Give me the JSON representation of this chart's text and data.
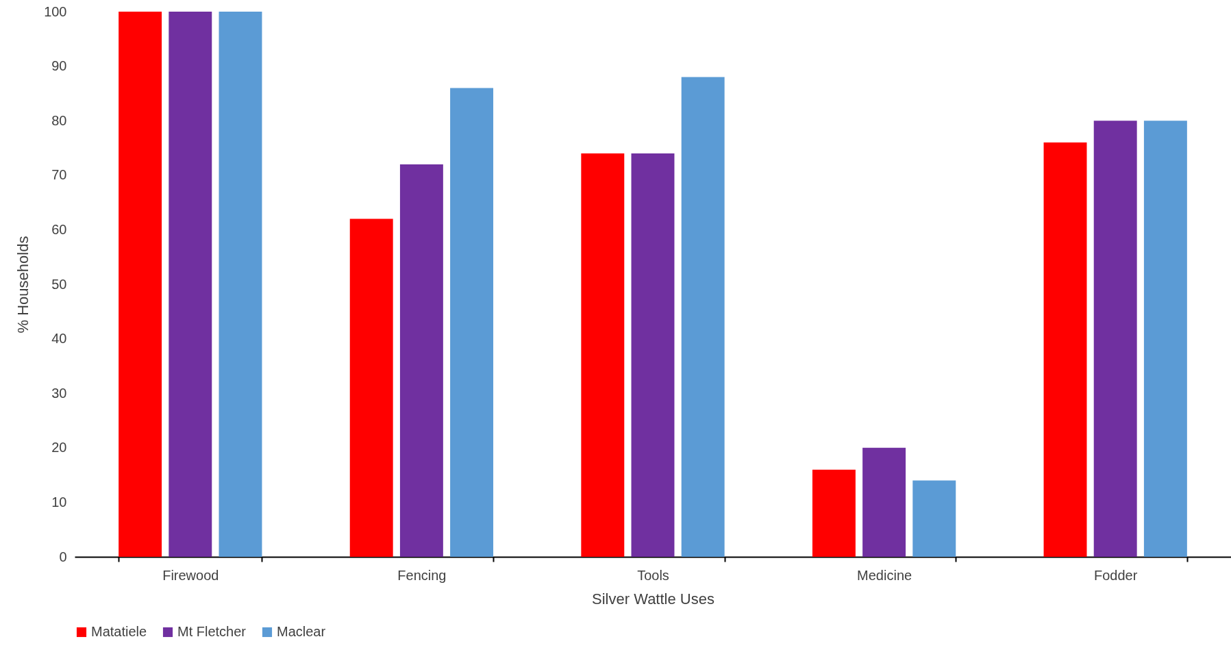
{
  "chart_data": {
    "type": "bar",
    "xlabel": "Silver Wattle Uses",
    "ylabel": "% Households",
    "categories": [
      "Firewood",
      "Fencing",
      "Tools",
      "Medicine",
      "Fodder"
    ],
    "series": [
      {
        "name": "Matatiele",
        "color": "#ff0000",
        "values": [
          100,
          62,
          74,
          16,
          76
        ]
      },
      {
        "name": "Mt Fletcher",
        "color": "#7030a0",
        "values": [
          100,
          72,
          74,
          20,
          80
        ]
      },
      {
        "name": "Maclear",
        "color": "#5b9bd5",
        "values": [
          100,
          86,
          88,
          14,
          80
        ]
      }
    ],
    "ylim": [
      0,
      100
    ],
    "yticks": [
      0,
      10,
      20,
      30,
      40,
      50,
      60,
      70,
      80,
      90,
      100
    ],
    "grid": false,
    "legend": "bottom"
  }
}
